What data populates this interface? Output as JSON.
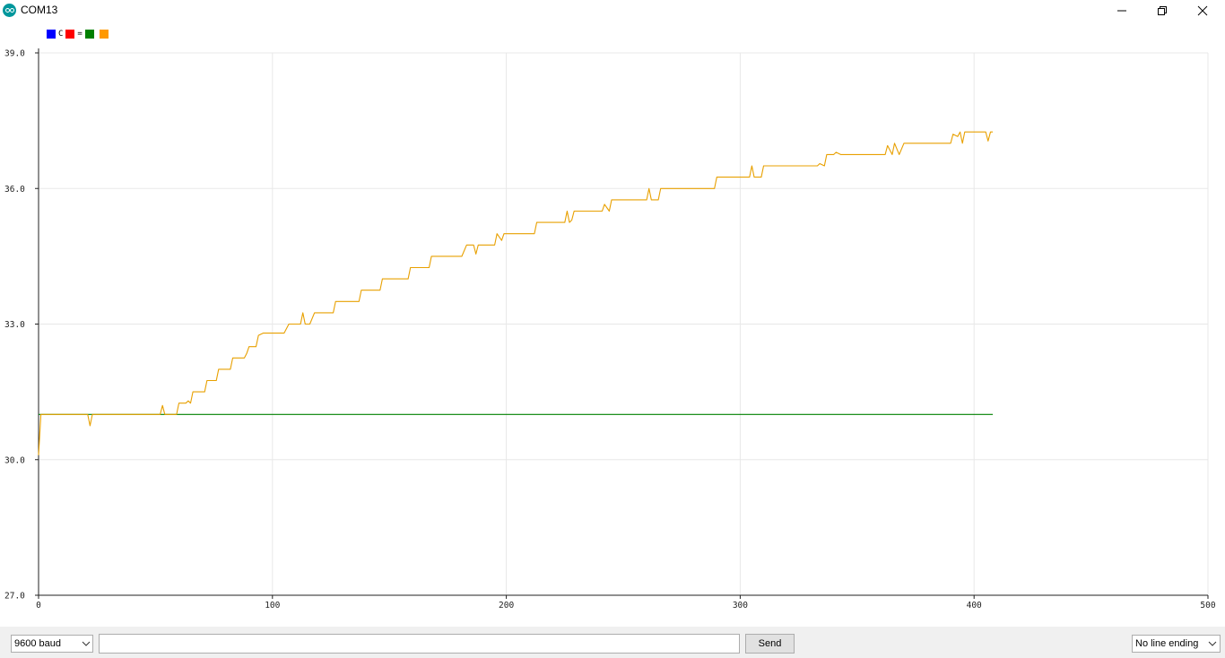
{
  "window": {
    "title": "COM13",
    "icon": "arduino-icon",
    "controls": [
      "minimize-icon",
      "maximize-icon",
      "close-icon"
    ]
  },
  "legend": [
    {
      "color": "#0000ff",
      "label": "C"
    },
    {
      "color": "#ff0000",
      "label": "="
    },
    {
      "color": "#008000",
      "label": ""
    },
    {
      "color": "#ff9900",
      "label": ""
    }
  ],
  "chart_data": {
    "type": "line",
    "xlim": [
      0,
      500
    ],
    "ylim": [
      27.0,
      39.0
    ],
    "x_ticks": [
      0,
      100,
      200,
      300,
      400,
      500
    ],
    "y_ticks": [
      "27.0",
      "30.0",
      "33.0",
      "36.0",
      "39.0"
    ],
    "grid": true,
    "legend_placement": "top-left",
    "series": [
      {
        "color": "#008000",
        "points": [
          [
            0,
            31.0
          ],
          [
            408,
            31.0
          ]
        ]
      },
      {
        "color": "#e8a000",
        "points": [
          [
            0,
            30.1
          ],
          [
            1,
            31.0
          ],
          [
            21,
            31.0
          ],
          [
            22,
            30.75
          ],
          [
            23,
            31.0
          ],
          [
            52,
            31.0
          ],
          [
            53,
            31.2
          ],
          [
            54,
            31.0
          ],
          [
            59,
            31.0
          ],
          [
            60,
            31.25
          ],
          [
            63,
            31.25
          ],
          [
            64,
            31.3
          ],
          [
            65,
            31.25
          ],
          [
            66,
            31.5
          ],
          [
            71,
            31.5
          ],
          [
            72,
            31.75
          ],
          [
            76,
            31.75
          ],
          [
            77,
            32.0
          ],
          [
            82,
            32.0
          ],
          [
            83,
            32.25
          ],
          [
            88,
            32.25
          ],
          [
            89,
            32.35
          ],
          [
            90,
            32.5
          ],
          [
            93,
            32.5
          ],
          [
            94,
            32.75
          ],
          [
            96,
            32.8
          ],
          [
            105,
            32.8
          ],
          [
            107,
            33.0
          ],
          [
            112,
            33.0
          ],
          [
            113,
            33.25
          ],
          [
            114,
            33.0
          ],
          [
            116,
            33.0
          ],
          [
            118,
            33.25
          ],
          [
            126,
            33.25
          ],
          [
            127,
            33.5
          ],
          [
            137,
            33.5
          ],
          [
            138,
            33.75
          ],
          [
            146,
            33.75
          ],
          [
            147,
            34.0
          ],
          [
            158,
            34.0
          ],
          [
            159,
            34.25
          ],
          [
            167,
            34.25
          ],
          [
            168,
            34.5
          ],
          [
            181,
            34.5
          ],
          [
            183,
            34.75
          ],
          [
            186,
            34.75
          ],
          [
            187,
            34.55
          ],
          [
            188,
            34.75
          ],
          [
            195,
            34.75
          ],
          [
            196,
            35.0
          ],
          [
            198,
            34.85
          ],
          [
            199,
            35.0
          ],
          [
            212,
            35.0
          ],
          [
            213,
            35.25
          ],
          [
            225,
            35.25
          ],
          [
            226,
            35.5
          ],
          [
            227,
            35.25
          ],
          [
            228,
            35.3
          ],
          [
            229,
            35.5
          ],
          [
            241,
            35.5
          ],
          [
            242,
            35.65
          ],
          [
            244,
            35.5
          ],
          [
            245,
            35.75
          ],
          [
            260,
            35.75
          ],
          [
            261,
            36.0
          ],
          [
            262,
            35.75
          ],
          [
            265,
            35.75
          ],
          [
            266,
            36.0
          ],
          [
            269,
            36.0
          ],
          [
            270,
            36.0
          ],
          [
            289,
            36.0
          ],
          [
            290,
            36.25
          ],
          [
            304,
            36.25
          ],
          [
            305,
            36.5
          ],
          [
            306,
            36.25
          ],
          [
            309,
            36.25
          ],
          [
            310,
            36.5
          ],
          [
            333,
            36.5
          ],
          [
            334,
            36.55
          ],
          [
            336,
            36.5
          ],
          [
            337,
            36.75
          ],
          [
            340,
            36.75
          ],
          [
            341,
            36.8
          ],
          [
            343,
            36.75
          ],
          [
            362,
            36.75
          ],
          [
            363,
            36.95
          ],
          [
            365,
            36.75
          ],
          [
            366,
            37.0
          ],
          [
            368,
            36.75
          ],
          [
            370,
            37.0
          ],
          [
            390,
            37.0
          ],
          [
            391,
            37.2
          ],
          [
            393,
            37.15
          ],
          [
            394,
            37.25
          ],
          [
            395,
            37.0
          ],
          [
            396,
            37.25
          ],
          [
            397,
            37.25
          ],
          [
            398,
            37.25
          ],
          [
            405,
            37.25
          ],
          [
            406,
            37.05
          ],
          [
            407,
            37.25
          ],
          [
            408,
            37.25
          ]
        ]
      }
    ]
  },
  "controls": {
    "baud": "9600 baud",
    "send_input_value": "",
    "send_label": "Send",
    "line_ending": "No line ending"
  }
}
